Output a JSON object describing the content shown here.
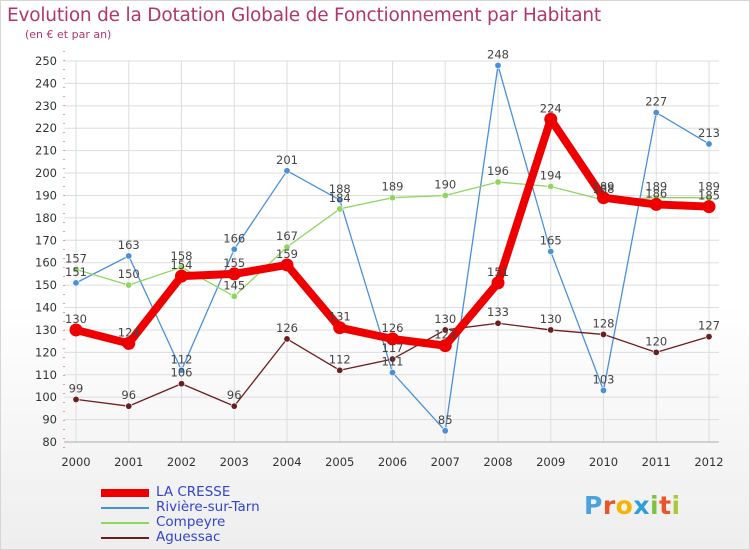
{
  "header": {
    "title": "Evolution de la Dotation Globale de Fonctionnement par Habitant",
    "subtitle": "(en € et par an)"
  },
  "logo": {
    "letters": [
      "P",
      "r",
      "o",
      "x",
      "i",
      "t",
      "i"
    ],
    "colors": [
      "#4aa3df",
      "#e8552b",
      "#f5b400",
      "#2e9fd8",
      "#7fc241",
      "#e8552b",
      "#a8c93a"
    ]
  },
  "chart_data": {
    "type": "line",
    "title": "Evolution de la Dotation Globale de Fonctionnement par Habitant",
    "subtitle": "(en € et par an)",
    "x": [
      "2000",
      "2001",
      "2002",
      "2003",
      "2004",
      "2005",
      "2006",
      "2007",
      "2008",
      "2009",
      "2010",
      "2011",
      "2012"
    ],
    "ylim": [
      80,
      250
    ],
    "yticks": [
      80,
      90,
      100,
      110,
      120,
      130,
      140,
      150,
      160,
      170,
      180,
      190,
      200,
      210,
      220,
      230,
      240,
      250
    ],
    "grid": true,
    "legend_position": "bottom-left",
    "series": [
      {
        "name": "Rivière-sur-Tarn",
        "color": "#4a90d9",
        "values": [
          151,
          163,
          112,
          166,
          201,
          188,
          111,
          85,
          248,
          165,
          103,
          227,
          213
        ],
        "labels": [
          "151",
          "163",
          "112",
          "166",
          "201",
          "188",
          "111",
          "85",
          "248",
          "165",
          "103",
          "227",
          "213"
        ]
      },
      {
        "name": "Compeyre",
        "color": "#8ed660",
        "values": [
          157,
          150,
          158,
          145,
          167,
          184,
          189,
          190,
          196,
          194,
          188,
          189,
          189
        ],
        "labels": [
          "157",
          "150",
          "158",
          "145",
          "167",
          "184",
          "189",
          "190",
          "196",
          "194",
          "188",
          "189",
          "189"
        ]
      },
      {
        "name": "Aguessac",
        "color": "#6b1e1e",
        "values": [
          99,
          96,
          106,
          96,
          126,
          112,
          117,
          130,
          133,
          130,
          128,
          120,
          127
        ],
        "labels": [
          "99",
          "96",
          "106",
          "96",
          "126",
          "112",
          "117",
          "130",
          "133",
          "130",
          "128",
          "120",
          "127"
        ]
      },
      {
        "name": "LA CRESSE",
        "color": "#ee0000",
        "values": [
          130,
          124,
          154,
          155,
          159,
          131,
          126,
          123,
          151,
          224,
          189,
          186,
          185
        ],
        "labels": [
          "130",
          "124",
          "154",
          "155",
          "159",
          "131",
          "126",
          "123",
          "151",
          "224",
          "189",
          "186",
          "185"
        ]
      }
    ]
  }
}
